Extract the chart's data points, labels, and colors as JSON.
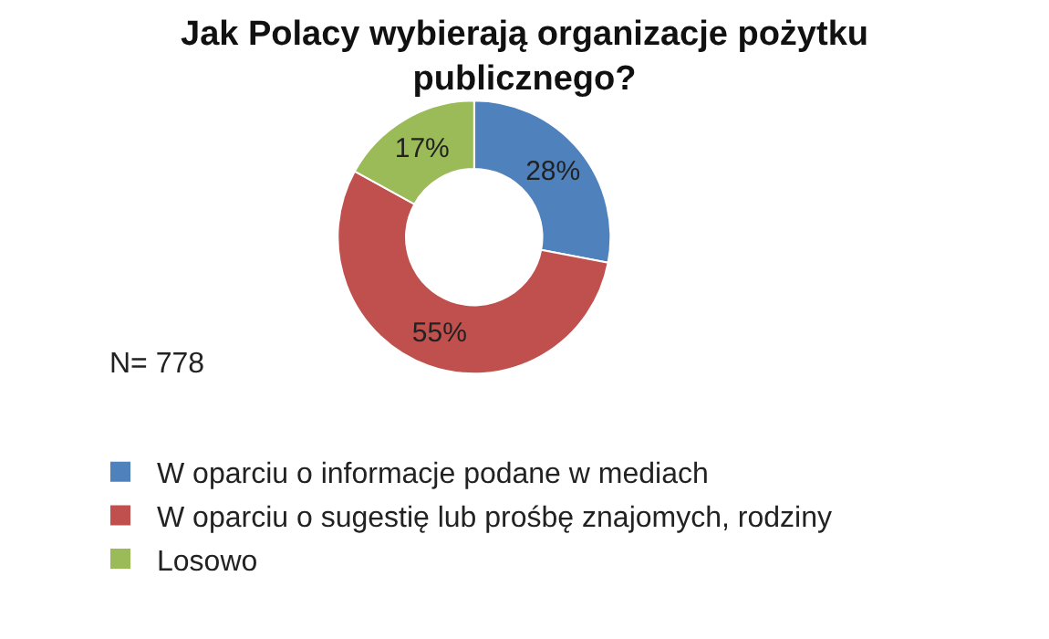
{
  "chart_data": {
    "type": "donut",
    "title": "Jak Polacy wybierają organizacje pożytku publicznego?",
    "categories": [
      "W oparciu o informacje podane w mediach",
      "W oparciu o sugestię lub prośbę znajomych, rodziny",
      "Losowo"
    ],
    "values": [
      28,
      55,
      17
    ],
    "colors": [
      "#4f81bd",
      "#c0504d",
      "#9bbb59"
    ],
    "value_labels": [
      "28%",
      "55%",
      "17%"
    ],
    "annotations": [
      "N= 778"
    ],
    "legend": "bottom"
  }
}
